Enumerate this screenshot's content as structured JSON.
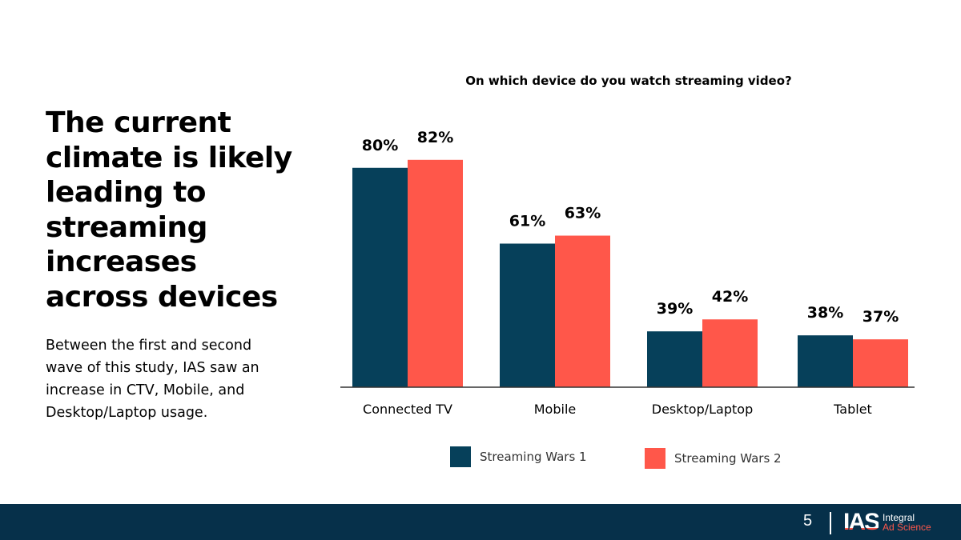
{
  "headline": "The current climate is likely leading to streaming increases across devices",
  "body": "Between the first and second wave of this study, IAS saw an increase in CTV, Mobile, and Desktop/Laptop usage.",
  "footer": {
    "page": "5",
    "logo_mark": "IAS",
    "logo_line1": "Integral",
    "logo_line2": "Ad Science"
  },
  "colors": {
    "series1": "#06405a",
    "series2": "#ff574a",
    "footer": "#06304a"
  },
  "chart_data": {
    "type": "bar",
    "title": "On which device do you watch streaming video?",
    "categories": [
      "Connected TV",
      "Mobile",
      "Desktop/Laptop",
      "Tablet"
    ],
    "series": [
      {
        "name": "Streaming Wars 1",
        "values": [
          80,
          61,
          39,
          38
        ],
        "labels": [
          "80%",
          "61%",
          "39%",
          "38%"
        ]
      },
      {
        "name": "Streaming Wars 2",
        "values": [
          82,
          63,
          42,
          37
        ],
        "labels": [
          "82%",
          "63%",
          "42%",
          "37%"
        ]
      }
    ],
    "ylim": [
      25,
      96
    ],
    "grid": false,
    "legend": "bottom",
    "xlabel": "",
    "ylabel": ""
  }
}
